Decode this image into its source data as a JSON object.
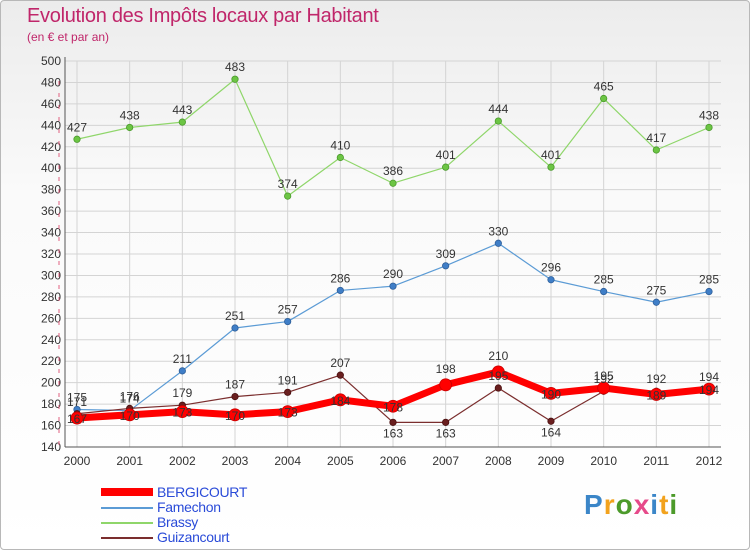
{
  "chart_data": {
    "type": "line",
    "title": "Evolution des Impôts locaux par Habitant",
    "subtitle": "(en € et par an)",
    "xlabel": "",
    "ylabel": "",
    "ylim": [
      140,
      500
    ],
    "yticks": [
      "140",
      "160",
      "180",
      "200",
      "220",
      "240",
      "260",
      "280",
      "300",
      "320",
      "340",
      "360",
      "380",
      "400",
      "420",
      "440",
      "460",
      "480",
      "500"
    ],
    "categories": [
      "2000",
      "2001",
      "2002",
      "2003",
      "2004",
      "2005",
      "2006",
      "2007",
      "2008",
      "2009",
      "2010",
      "2011",
      "2012"
    ],
    "series": [
      {
        "name": "BERGICOURT",
        "color": "#ff0000",
        "values": [
          167,
          170,
          173,
          170,
          173,
          184,
          178,
          198,
          210,
          190,
          195,
          189,
          194
        ],
        "labels": [
          "167",
          "170",
          "173",
          "170",
          "173",
          "184",
          "178",
          "198",
          "210",
          "190",
          "195",
          "189",
          "194"
        ]
      },
      {
        "name": "Famechon",
        "color": "#5b9bd5",
        "values": [
          175,
          174,
          211,
          251,
          257,
          286,
          290,
          309,
          330,
          296,
          285,
          275,
          285
        ],
        "labels": [
          "175",
          "174",
          "211",
          "251",
          "257",
          "286",
          "290",
          "309",
          "330",
          "296",
          "285",
          "275",
          "285"
        ]
      },
      {
        "name": "Brassy",
        "color": "#8fd66a",
        "values": [
          427,
          438,
          443,
          483,
          374,
          410,
          386,
          401,
          444,
          401,
          465,
          417,
          438
        ],
        "labels": [
          "427",
          "438",
          "443",
          "483",
          "374",
          "410",
          "386",
          "401",
          "444",
          "401",
          "465",
          "417",
          "438"
        ]
      },
      {
        "name": "Guizancourt",
        "color": "#7b2e2e",
        "values": [
          171,
          176,
          179,
          187,
          191,
          207,
          163,
          163,
          195,
          164,
          192,
          192,
          194
        ],
        "labels": [
          "171",
          "176",
          "179",
          "187",
          "191",
          "207",
          "163",
          "163",
          "195",
          "164",
          "192",
          "192",
          "194"
        ]
      }
    ],
    "legend_position": "bottom-left",
    "grid": true
  },
  "branding": {
    "logo_text": "Proxiti",
    "logo_colors": [
      "#3b86c8",
      "#f2a21d",
      "#4c9a2a",
      "#e64a8a",
      "#3b86c8",
      "#f2a21d",
      "#4c9a2a"
    ]
  }
}
